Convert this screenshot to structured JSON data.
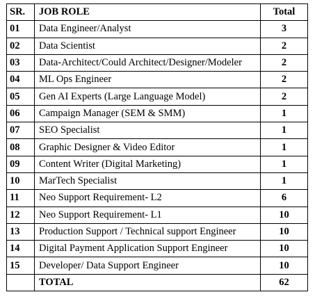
{
  "table": {
    "headers": {
      "sr": "SR.",
      "role": "JOB ROLE",
      "total": "Total"
    },
    "rows": [
      {
        "sr": "01",
        "role": "Data Engineer/Analyst",
        "total": "3"
      },
      {
        "sr": "02",
        "role": "Data Scientist",
        "total": "2"
      },
      {
        "sr": "03",
        "role": "Data-Architect/Could Architect/Designer/Modeler",
        "total": "2"
      },
      {
        "sr": "04",
        "role": "ML Ops Engineer",
        "total": "2"
      },
      {
        "sr": "05",
        "role": "Gen AI Experts (Large Language Model)",
        "total": "2"
      },
      {
        "sr": "06",
        "role": "Campaign Manager (SEM & SMM)",
        "total": "1"
      },
      {
        "sr": "07",
        "role": "SEO Specialist",
        "total": "1"
      },
      {
        "sr": "08",
        "role": "Graphic Designer & Video Editor",
        "total": "1"
      },
      {
        "sr": "09",
        "role": "Content Writer (Digital Marketing)",
        "total": "1"
      },
      {
        "sr": "10",
        "role": "MarTech Specialist",
        "total": "1"
      },
      {
        "sr": "11",
        "role": "Neo Support Requirement- L2",
        "total": "6"
      },
      {
        "sr": "12",
        "role": "Neo Support Requirement- L1",
        "total": "10"
      },
      {
        "sr": "13",
        "role": "Production Support / Technical support Engineer",
        "total": "10"
      },
      {
        "sr": "14",
        "role": "Digital Payment Application Support Engineer",
        "total": "10"
      },
      {
        "sr": "15",
        "role": "Developer/ Data Support Engineer",
        "total": "10"
      }
    ],
    "footer": {
      "sr": "",
      "role": "TOTAL",
      "total": "62"
    }
  }
}
